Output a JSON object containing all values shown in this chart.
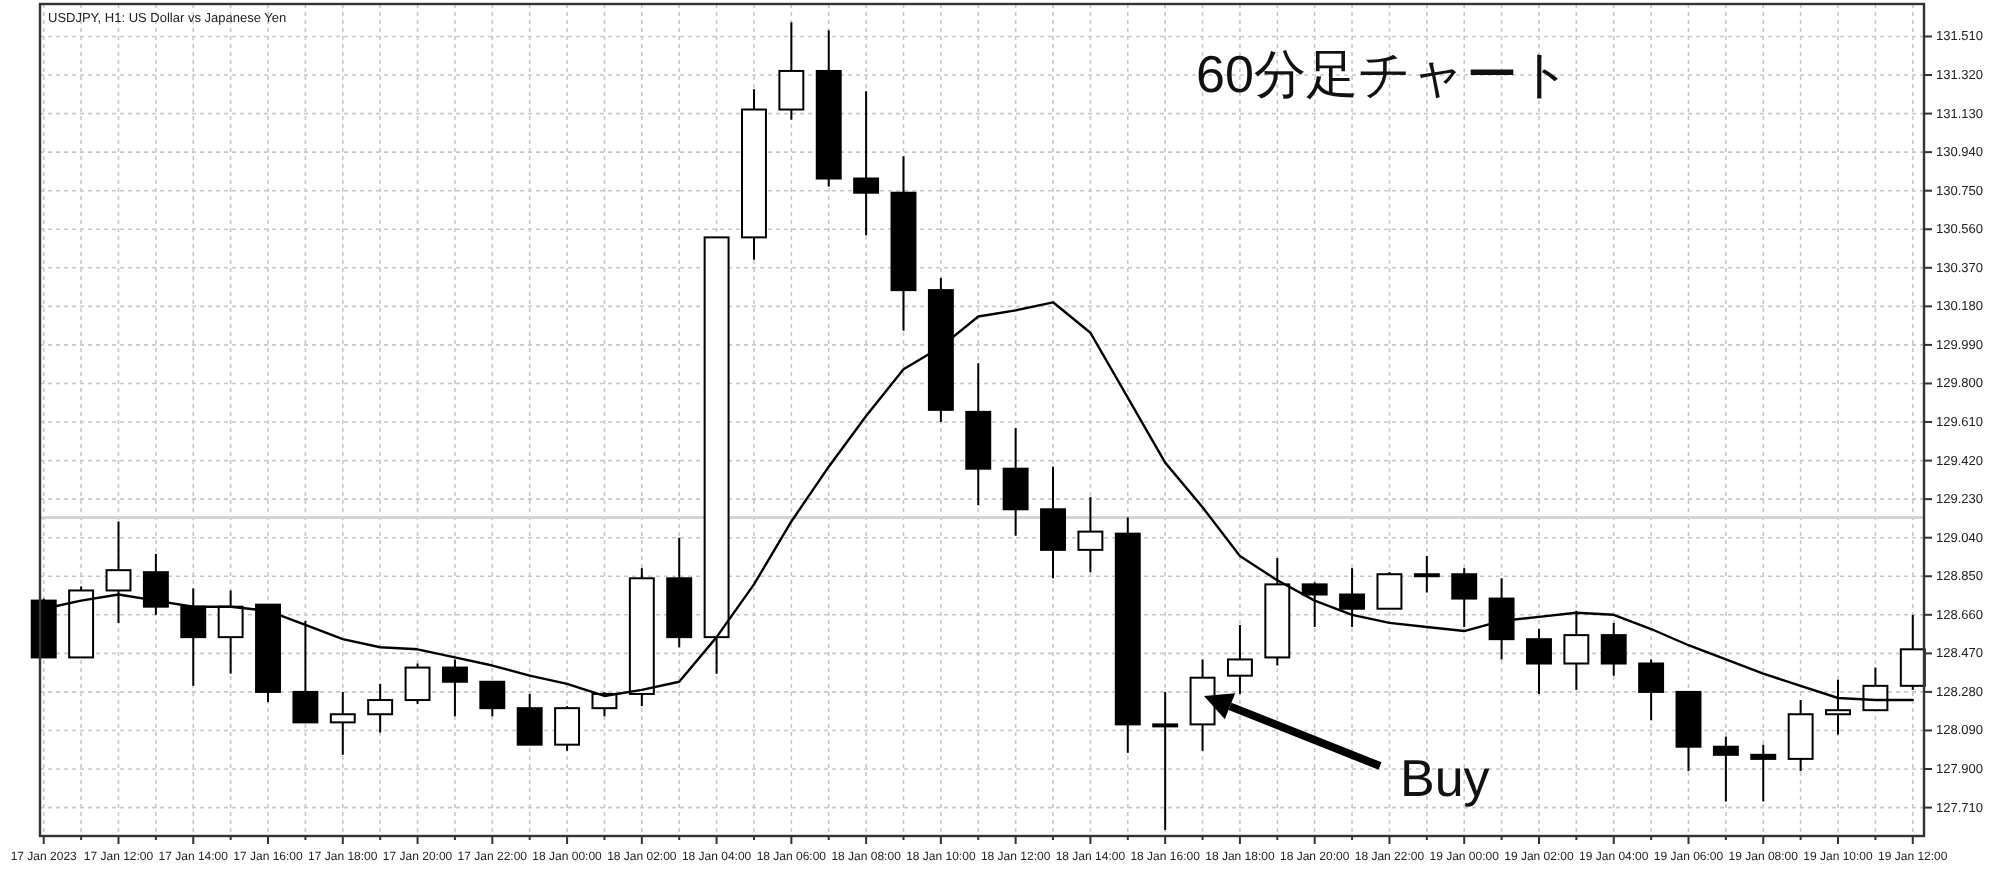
{
  "chart_data": {
    "type": "candlestick",
    "title": "USDJPY, H1: US Dollar vs Japanese Yen",
    "annotations": [
      "60分足チャート",
      "Buy"
    ],
    "x": [
      "2023-01-17T10:00",
      "2023-01-17T11:00",
      "2023-01-17T12:00",
      "2023-01-17T13:00",
      "2023-01-17T14:00",
      "2023-01-17T15:00",
      "2023-01-17T16:00",
      "2023-01-17T17:00",
      "2023-01-17T18:00",
      "2023-01-17T19:00",
      "2023-01-17T20:00",
      "2023-01-17T21:00",
      "2023-01-17T22:00",
      "2023-01-17T23:00",
      "2023-01-18T00:00",
      "2023-01-18T01:00",
      "2023-01-18T02:00",
      "2023-01-18T03:00",
      "2023-01-18T04:00",
      "2023-01-18T05:00",
      "2023-01-18T06:00",
      "2023-01-18T07:00",
      "2023-01-18T08:00",
      "2023-01-18T09:00",
      "2023-01-18T10:00",
      "2023-01-18T11:00",
      "2023-01-18T12:00",
      "2023-01-18T13:00",
      "2023-01-18T14:00",
      "2023-01-18T15:00",
      "2023-01-18T16:00",
      "2023-01-18T17:00",
      "2023-01-18T18:00",
      "2023-01-18T19:00",
      "2023-01-18T20:00",
      "2023-01-18T21:00",
      "2023-01-18T22:00",
      "2023-01-18T23:00",
      "2023-01-19T00:00",
      "2023-01-19T01:00",
      "2023-01-19T02:00",
      "2023-01-19T03:00",
      "2023-01-19T04:00",
      "2023-01-19T05:00",
      "2023-01-19T06:00",
      "2023-01-19T07:00",
      "2023-01-19T08:00",
      "2023-01-19T09:00",
      "2023-01-19T10:00",
      "2023-01-19T11:00",
      "2023-01-19T12:00"
    ],
    "ohlc": [
      [
        128.73,
        128.74,
        128.45,
        128.45
      ],
      [
        128.45,
        128.8,
        128.45,
        128.78
      ],
      [
        128.78,
        129.12,
        128.62,
        128.88
      ],
      [
        128.87,
        128.96,
        128.66,
        128.7
      ],
      [
        128.7,
        128.79,
        128.31,
        128.55
      ],
      [
        128.55,
        128.78,
        128.37,
        128.7
      ],
      [
        128.71,
        128.71,
        128.23,
        128.28
      ],
      [
        128.28,
        128.63,
        128.13,
        128.13
      ],
      [
        128.13,
        128.28,
        127.97,
        128.17
      ],
      [
        128.17,
        128.32,
        128.08,
        128.24
      ],
      [
        128.24,
        128.42,
        128.22,
        128.4
      ],
      [
        128.4,
        128.44,
        128.16,
        128.33
      ],
      [
        128.33,
        128.33,
        128.16,
        128.2
      ],
      [
        128.2,
        128.27,
        128.02,
        128.02
      ],
      [
        128.02,
        128.21,
        127.99,
        128.2
      ],
      [
        128.2,
        128.28,
        128.16,
        128.27
      ],
      [
        128.27,
        128.89,
        128.21,
        128.84
      ],
      [
        128.84,
        129.04,
        128.5,
        128.55
      ],
      [
        128.55,
        130.52,
        128.37,
        130.52
      ],
      [
        130.52,
        131.25,
        130.41,
        131.15
      ],
      [
        131.15,
        131.58,
        131.1,
        131.34
      ],
      [
        131.34,
        131.54,
        130.77,
        130.81
      ],
      [
        130.81,
        131.24,
        130.53,
        130.74
      ],
      [
        130.74,
        130.92,
        130.06,
        130.26
      ],
      [
        130.26,
        130.32,
        129.61,
        129.67
      ],
      [
        129.66,
        129.9,
        129.2,
        129.38
      ],
      [
        129.38,
        129.58,
        129.05,
        129.18
      ],
      [
        129.18,
        129.39,
        128.84,
        128.98
      ],
      [
        128.98,
        129.24,
        128.87,
        129.07
      ],
      [
        129.06,
        129.14,
        127.98,
        128.12
      ],
      [
        128.12,
        128.28,
        127.6,
        128.12
      ],
      [
        128.12,
        128.44,
        127.99,
        128.35
      ],
      [
        128.36,
        128.61,
        128.27,
        128.44
      ],
      [
        128.45,
        128.94,
        128.41,
        128.81
      ],
      [
        128.81,
        128.82,
        128.6,
        128.76
      ],
      [
        128.76,
        128.89,
        128.6,
        128.69
      ],
      [
        128.69,
        128.87,
        128.69,
        128.86
      ],
      [
        128.86,
        128.95,
        128.77,
        128.86
      ],
      [
        128.86,
        128.89,
        128.6,
        128.74
      ],
      [
        128.74,
        128.84,
        128.44,
        128.54
      ],
      [
        128.54,
        128.59,
        128.27,
        128.42
      ],
      [
        128.42,
        128.68,
        128.29,
        128.56
      ],
      [
        128.56,
        128.62,
        128.36,
        128.42
      ],
      [
        128.42,
        128.44,
        128.14,
        128.28
      ],
      [
        128.28,
        128.28,
        127.89,
        128.01
      ],
      [
        128.01,
        128.06,
        127.74,
        127.97
      ],
      [
        127.97,
        128.02,
        127.74,
        127.95
      ],
      [
        127.95,
        128.24,
        127.89,
        128.17
      ],
      [
        128.17,
        128.34,
        128.07,
        128.19
      ],
      [
        128.19,
        128.4,
        128.19,
        128.31
      ],
      [
        128.31,
        128.66,
        128.29,
        128.49
      ]
    ],
    "colors": [
      "#000000",
      "#ffffff",
      "#ffffff",
      "#000000",
      "#000000",
      "#ffffff",
      "#000000",
      "#000000",
      "#ffffff",
      "#ffffff",
      "#ffffff",
      "#000000",
      "#000000",
      "#000000",
      "#ffffff",
      "#ffffff",
      "#ffffff",
      "#000000",
      "#ffffff",
      "#ffffff",
      "#ffffff",
      "#000000",
      "#000000",
      "#000000",
      "#000000",
      "#000000",
      "#000000",
      "#000000",
      "#ffffff",
      "#000000",
      "#000000",
      "#ffffff",
      "#ffffff",
      "#ffffff",
      "#000000",
      "#000000",
      "#ffffff",
      "#000000",
      "#000000",
      "#000000",
      "#000000",
      "#ffffff",
      "#000000",
      "#000000",
      "#000000",
      "#000000",
      "#000000",
      "#ffffff",
      "#ffffff",
      "#ffffff",
      "#ffffff"
    ],
    "series": [
      {
        "type": "line",
        "color": "#000000",
        "values": [
          128.69,
          128.73,
          128.76,
          128.73,
          128.7,
          128.7,
          128.68,
          128.61,
          128.54,
          128.5,
          128.49,
          128.45,
          128.41,
          128.36,
          128.32,
          128.26,
          128.29,
          128.33,
          128.55,
          128.81,
          129.12,
          129.39,
          129.64,
          129.87,
          129.98,
          130.13,
          130.16,
          130.2,
          130.05,
          129.73,
          129.41,
          129.19,
          128.95,
          128.83,
          128.73,
          128.66,
          128.62,
          128.6,
          128.58,
          128.63,
          128.65,
          128.67,
          128.66,
          128.59,
          128.51,
          128.44,
          128.37,
          128.31,
          128.25,
          128.24,
          128.24
        ]
      }
    ],
    "ref_lines": [
      {
        "axis": "y",
        "value": 129.14,
        "color": "#d4d4d4"
      }
    ],
    "xlim": [
      "2023-01-17T09:54",
      "2023-01-19T12:18"
    ],
    "xticks": [
      {
        "value": "2023-01-17T10:00",
        "label": "17 Jan 2023"
      },
      {
        "value": "2023-01-17T11:00",
        "label": null
      },
      {
        "value": "2023-01-17T12:00",
        "label": "17 Jan 12:00"
      },
      {
        "value": "2023-01-17T13:00",
        "label": null
      },
      {
        "value": "2023-01-17T14:00",
        "label": "17 Jan 14:00"
      },
      {
        "value": "2023-01-17T15:00",
        "label": null
      },
      {
        "value": "2023-01-17T16:00",
        "label": "17 Jan 16:00"
      },
      {
        "value": "2023-01-17T17:00",
        "label": null
      },
      {
        "value": "2023-01-17T18:00",
        "label": "17 Jan 18:00"
      },
      {
        "value": "2023-01-17T19:00",
        "label": null
      },
      {
        "value": "2023-01-17T20:00",
        "label": "17 Jan 20:00"
      },
      {
        "value": "2023-01-17T21:00",
        "label": null
      },
      {
        "value": "2023-01-17T22:00",
        "label": "17 Jan 22:00"
      },
      {
        "value": "2023-01-17T23:00",
        "label": null
      },
      {
        "value": "2023-01-18T00:00",
        "label": "18 Jan 00:00"
      },
      {
        "value": "2023-01-18T01:00",
        "label": null
      },
      {
        "value": "2023-01-18T02:00",
        "label": "18 Jan 02:00"
      },
      {
        "value": "2023-01-18T03:00",
        "label": null
      },
      {
        "value": "2023-01-18T04:00",
        "label": "18 Jan 04:00"
      },
      {
        "value": "2023-01-18T05:00",
        "label": null
      },
      {
        "value": "2023-01-18T06:00",
        "label": "18 Jan 06:00"
      },
      {
        "value": "2023-01-18T07:00",
        "label": null
      },
      {
        "value": "2023-01-18T08:00",
        "label": "18 Jan 08:00"
      },
      {
        "value": "2023-01-18T09:00",
        "label": null
      },
      {
        "value": "2023-01-18T10:00",
        "label": "18 Jan 10:00"
      },
      {
        "value": "2023-01-18T11:00",
        "label": null
      },
      {
        "value": "2023-01-18T12:00",
        "label": "18 Jan 12:00"
      },
      {
        "value": "2023-01-18T13:00",
        "label": null
      },
      {
        "value": "2023-01-18T14:00",
        "label": "18 Jan 14:00"
      },
      {
        "value": "2023-01-18T15:00",
        "label": null
      },
      {
        "value": "2023-01-18T16:00",
        "label": "18 Jan 16:00"
      },
      {
        "value": "2023-01-18T17:00",
        "label": null
      },
      {
        "value": "2023-01-18T18:00",
        "label": "18 Jan 18:00"
      },
      {
        "value": "2023-01-18T19:00",
        "label": null
      },
      {
        "value": "2023-01-18T20:00",
        "label": "18 Jan 20:00"
      },
      {
        "value": "2023-01-18T21:00",
        "label": null
      },
      {
        "value": "2023-01-18T22:00",
        "label": "18 Jan 22:00"
      },
      {
        "value": "2023-01-18T23:00",
        "label": null
      },
      {
        "value": "2023-01-19T00:00",
        "label": "19 Jan 00:00"
      },
      {
        "value": "2023-01-19T01:00",
        "label": null
      },
      {
        "value": "2023-01-19T02:00",
        "label": "19 Jan 02:00"
      },
      {
        "value": "2023-01-19T03:00",
        "label": null
      },
      {
        "value": "2023-01-19T04:00",
        "label": "19 Jan 04:00"
      },
      {
        "value": "2023-01-19T05:00",
        "label": null
      },
      {
        "value": "2023-01-19T06:00",
        "label": "19 Jan 06:00"
      },
      {
        "value": "2023-01-19T07:00",
        "label": null
      },
      {
        "value": "2023-01-19T08:00",
        "label": "19 Jan 08:00"
      },
      {
        "value": "2023-01-19T09:00",
        "label": null
      },
      {
        "value": "2023-01-19T10:00",
        "label": "19 Jan 10:00"
      },
      {
        "value": "2023-01-19T11:00",
        "label": null
      },
      {
        "value": "2023-01-19T12:00",
        "label": "19 Jan 12:00"
      }
    ],
    "ylim": [
      127.57,
      131.67
    ],
    "yticks": [
      {
        "value": 131.51,
        "label": "131.510"
      },
      {
        "value": 131.32,
        "label": "131.320"
      },
      {
        "value": 131.13,
        "label": "131.130"
      },
      {
        "value": 130.94,
        "label": "130.940"
      },
      {
        "value": 130.75,
        "label": "130.750"
      },
      {
        "value": 130.56,
        "label": "130.560"
      },
      {
        "value": 130.37,
        "label": "130.370"
      },
      {
        "value": 130.18,
        "label": "130.180"
      },
      {
        "value": 129.99,
        "label": "129.990"
      },
      {
        "value": 129.8,
        "label": "129.800"
      },
      {
        "value": 129.61,
        "label": "129.610"
      },
      {
        "value": 129.42,
        "label": "129.420"
      },
      {
        "value": 129.23,
        "label": "129.230"
      },
      {
        "value": 129.04,
        "label": "129.040"
      },
      {
        "value": 128.85,
        "label": "128.850"
      },
      {
        "value": 128.66,
        "label": "128.660"
      },
      {
        "value": 128.47,
        "label": "128.470"
      },
      {
        "value": 128.28,
        "label": "128.280"
      },
      {
        "value": 128.09,
        "label": "128.090"
      },
      {
        "value": 127.9,
        "label": "127.900"
      },
      {
        "value": 127.71,
        "label": "127.710"
      }
    ],
    "grid": true
  }
}
